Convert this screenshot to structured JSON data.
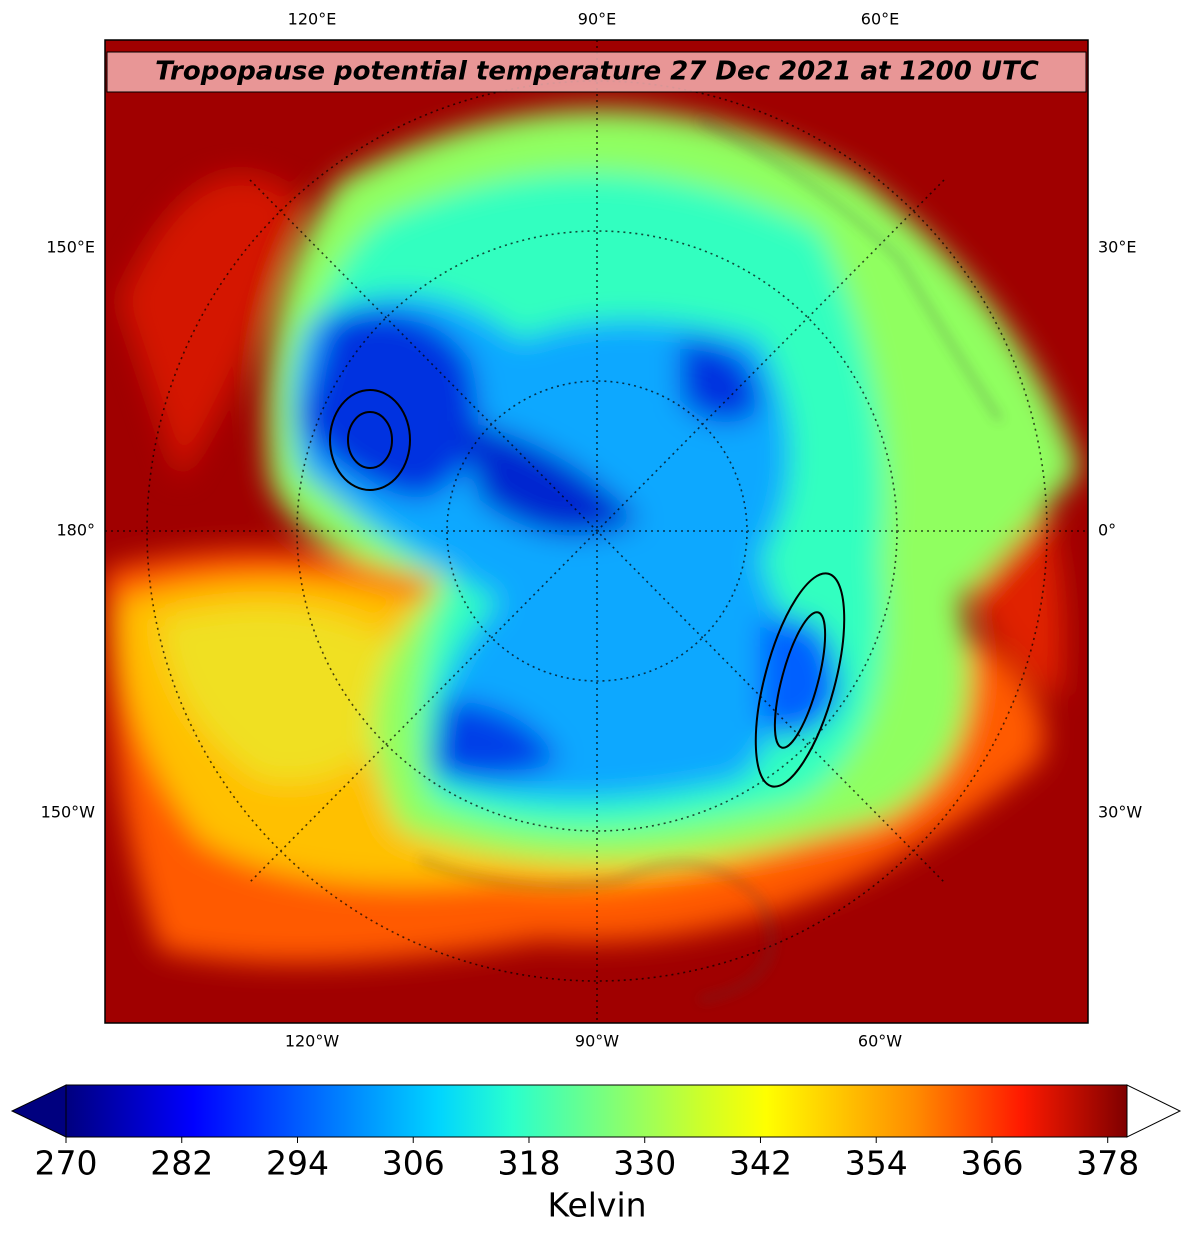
{
  "map": {
    "title": "Tropopause potential temperature 27 Dec 2021 at 1200 UTC",
    "top_labels": [
      "120°E",
      "90°E",
      "60°E"
    ],
    "bottom_labels": [
      "120°W",
      "90°W",
      "60°W"
    ],
    "left_labels": [
      "150°E",
      "180°",
      "150°W"
    ],
    "right_labels": [
      "30°E",
      "0°",
      "30°W"
    ]
  },
  "colorbar": {
    "label": "Kelvin",
    "lim": [
      270,
      380
    ],
    "ticks": [
      270,
      282,
      294,
      306,
      318,
      330,
      342,
      354,
      366,
      378
    ]
  }
}
